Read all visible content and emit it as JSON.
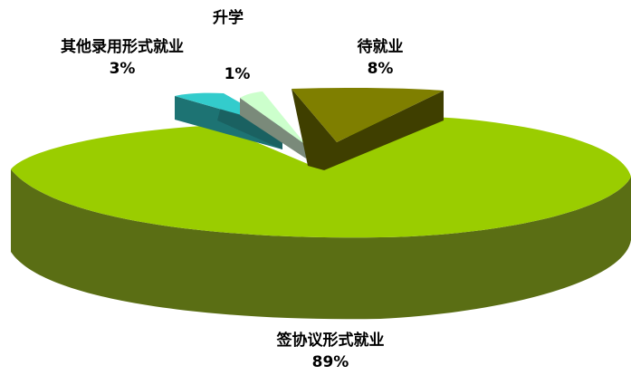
{
  "chart_data": {
    "type": "pie",
    "title": "",
    "slices": [
      {
        "label": "签协议形式就业",
        "value": 89,
        "value_label": "89%"
      },
      {
        "label": "其他录用形式就业",
        "value": 3,
        "value_label": "3%"
      },
      {
        "label": "升学",
        "value": 1,
        "value_label": "1%"
      },
      {
        "label": "待就业",
        "value": 8,
        "value_label": "8%"
      }
    ],
    "legend": "none",
    "style": "3d-exploded",
    "colors": {
      "main_top": "#9ACD00",
      "main_side": "#5A6E14",
      "teal_top": "#33CCCC",
      "teal_side": "#1D7373",
      "mint_top": "#CCFFCC",
      "mint_side": "#7A8A7A",
      "olive_top": "#7F7F00",
      "olive_side": "#3F3F00"
    }
  }
}
